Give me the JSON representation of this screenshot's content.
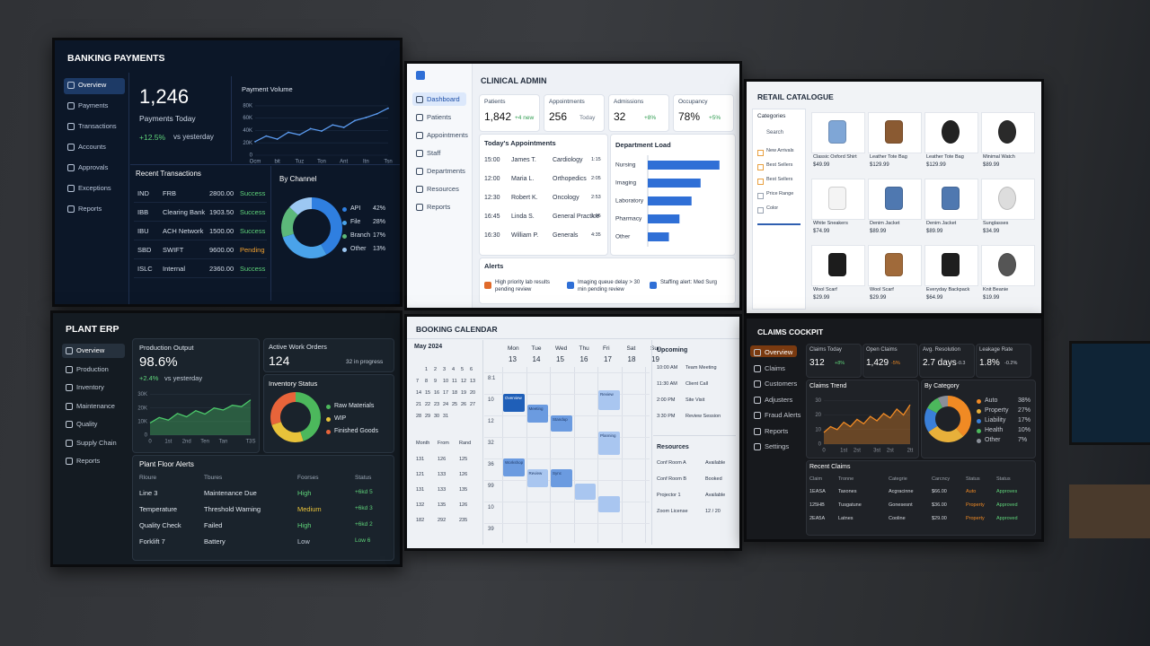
{
  "banking": {
    "title": "BANKING PAYMENTS",
    "nav": [
      "Overview",
      "Payments",
      "Transactions",
      "Accounts",
      "Approvals",
      "Exceptions",
      "Reports"
    ],
    "kpi": {
      "value": "1,246",
      "label": "Payments Today",
      "change": "+12.5%",
      "note": "vs yesterday"
    },
    "volume": {
      "type": "line",
      "title": "Payment Volume",
      "color": "#5b9bf0",
      "ylim": [
        0,
        90000
      ],
      "yticks": [
        0,
        {
          "value": 20000,
          "label": "20K"
        },
        {
          "value": 40000,
          "label": "40K"
        },
        {
          "value": 60000,
          "label": "60K"
        },
        {
          "value": 80000,
          "label": "80K"
        }
      ],
      "categories": [
        "Ocm",
        null,
        "bit",
        null,
        "Tuz",
        null,
        "Ton",
        null,
        "Ant",
        null,
        "Itn",
        null,
        "Tsn"
      ],
      "values": [
        22000,
        31000,
        26000,
        37000,
        33000,
        43000,
        39000,
        49000,
        45000,
        56000,
        61000,
        67000,
        76000
      ]
    },
    "transactions": {
      "title": "Recent Transactions",
      "rows": [
        [
          "IND",
          "FRB",
          "2800.00",
          "Success"
        ],
        [
          "IBB",
          "Clearing Bank",
          "1903.50",
          "Success"
        ],
        [
          "IBU",
          "ACH Network",
          "1500.00",
          "Success"
        ],
        [
          "SBD",
          "SWIFT",
          "9600.00",
          "Pending"
        ],
        [
          "ISLC",
          "Internal",
          "2360.00",
          "Success"
        ]
      ]
    },
    "channel": {
      "type": "pie",
      "title": "By Channel",
      "categories": [
        "API",
        "File",
        "Branch",
        "Other"
      ],
      "values": [
        42,
        28,
        17,
        13
      ],
      "value_labels": [
        "42%",
        "28%",
        "17%",
        "13%"
      ],
      "colors": [
        "#2f7fe0",
        "#4aa3ea",
        "#5cb87a",
        "#9cc7f2"
      ]
    }
  },
  "clinical": {
    "title": "CLINICAL ADMIN",
    "nav": [
      "Dashboard",
      "Patients",
      "Appointments",
      "Staff",
      "Departments",
      "Resources",
      "Reports"
    ],
    "kpis": [
      {
        "label": "Patients",
        "value": "1,842",
        "change": "+4 new"
      },
      {
        "label": "Appointments",
        "value": "256",
        "change": "Today"
      },
      {
        "label": "Admissions",
        "value": "32",
        "change": "+8%"
      },
      {
        "label": "Occupancy",
        "value": "78%",
        "change": "+5%"
      }
    ],
    "appointments": {
      "title": "Today's Appointments",
      "rows": [
        [
          "15:00",
          "James T.",
          "Cardiology",
          "1:15"
        ],
        [
          "12:00",
          "Maria L.",
          "Orthopedics",
          "2:05"
        ],
        [
          "12:30",
          "Robert K.",
          "Oncology",
          "2:53"
        ],
        [
          "16:45",
          "Linda S.",
          "General Practice",
          "1:05"
        ],
        [
          "16:30",
          "William P.",
          "Generals",
          "4:35"
        ]
      ]
    },
    "department_load": {
      "type": "bar",
      "title": "Department Load",
      "color": "#2f6fd6",
      "xlim": [
        0,
        100
      ],
      "categories": [
        "Nursing",
        "Imaging",
        "Laboratory",
        "Pharmacy",
        "Other"
      ],
      "values": [
        95,
        70,
        58,
        42,
        28
      ]
    },
    "alerts": {
      "title": "Alerts",
      "items": [
        "High priority lab results pending review",
        "Imaging queue delay > 30 min pending review",
        "Staffing alert: Med Surg"
      ]
    }
  },
  "retail": {
    "title": "RETAIL CATALOGUE",
    "sidebar": {
      "title": "Categories",
      "search": "Search",
      "filters": [
        "New Arrivals",
        "Best Sellers",
        "Best Sellers",
        "Price Range",
        "Color"
      ]
    },
    "products": [
      {
        "name": "Classic Oxford Shirt",
        "price": "$49.99"
      },
      {
        "name": "Leather Tote Bag",
        "price": "$129.99"
      },
      {
        "name": "Leather Tote Bag",
        "price": "$129.99"
      },
      {
        "name": "Minimal Watch",
        "price": "$89.99"
      },
      {
        "name": "White Sneakers",
        "price": "$74.99"
      },
      {
        "name": "Denim Jacket",
        "price": "$89.99"
      },
      {
        "name": "Denim Jacket",
        "price": "$89.99"
      },
      {
        "name": "Sunglasses",
        "price": "$34.99"
      },
      {
        "name": "Wool Scarf",
        "price": "$29.99"
      },
      {
        "name": "Wool Scarf",
        "price": "$29.99"
      },
      {
        "name": "Everyday Backpack",
        "price": "$64.99"
      },
      {
        "name": "Knit Beanie",
        "price": "$19.99"
      }
    ]
  },
  "plant": {
    "title": "PLANT ERP",
    "nav": [
      "Overview",
      "Production",
      "Inventory",
      "Maintenance",
      "Quality",
      "Supply Chain",
      "Reports"
    ],
    "output": {
      "label": "Production Output",
      "value": "98.6%",
      "change": "+2.4%",
      "note": "vs yesterday"
    },
    "output_chart": {
      "type": "line",
      "color": "#4cc96a",
      "ylim": [
        0,
        33000
      ],
      "yticks": [
        0,
        {
          "value": 10000,
          "label": "10K"
        },
        {
          "value": 20000,
          "label": "20K"
        },
        {
          "value": 30000,
          "label": "30K"
        }
      ],
      "categories": [
        "0",
        null,
        "1st",
        null,
        "2nd",
        null,
        "Ten",
        null,
        "Tan",
        null,
        null,
        "T3S"
      ],
      "values": [
        9000,
        13000,
        11000,
        16000,
        13500,
        18000,
        15500,
        20000,
        18500,
        22000,
        21000,
        26000
      ]
    },
    "work_orders": {
      "label": "Active Work Orders",
      "value": "124",
      "note": "32 in progress"
    },
    "inventory": {
      "type": "pie",
      "title": "Inventory Status",
      "categories": [
        "Raw Materials",
        "WIP",
        "Finished Goods"
      ],
      "values": [
        45,
        25,
        30
      ],
      "colors": [
        "#4cb85c",
        "#e8c23a",
        "#e8643a"
      ]
    },
    "alerts": {
      "title": "Plant Floor Alerts",
      "headers": [
        "Rloure",
        "Tbures",
        "Foorses",
        "Status"
      ],
      "rows": [
        [
          "Line 3",
          "Maintenance Due",
          "High",
          "+6kd 5"
        ],
        [
          "Temperature",
          "Threshold Warning",
          "Medium",
          "+6kd 3"
        ],
        [
          "Quality Check",
          "Failed",
          "High",
          "+6kd 2"
        ],
        [
          "Forklift 7",
          "Battery",
          "Low",
          "Low 6"
        ]
      ]
    }
  },
  "booking": {
    "title": "BOOKING CALENDAR",
    "mini_calendar": {
      "month": "May 2024",
      "days": [
        1,
        2,
        3,
        4,
        5,
        6,
        7,
        8,
        9,
        10,
        11,
        12,
        13,
        14,
        15,
        16,
        17,
        18,
        19,
        20,
        21,
        22,
        23,
        24,
        25,
        26,
        27,
        28,
        29,
        30,
        31
      ]
    },
    "mini_table": {
      "headers": [
        "Month",
        "From",
        "Rand"
      ],
      "rows": [
        [
          "131",
          "126",
          "125"
        ],
        [
          "121",
          "133",
          "126"
        ],
        [
          "131",
          "133",
          "135"
        ],
        [
          "132",
          "135",
          "126"
        ],
        [
          "182",
          "292",
          "235"
        ]
      ]
    },
    "weekdays": [
      "Mon",
      "Tue",
      "Wed",
      "Thu",
      "Fri",
      "Sat",
      "Sun"
    ],
    "dates": [
      13,
      14,
      15,
      16,
      17,
      18,
      19
    ],
    "times": [
      "8:1",
      "10",
      "12",
      "32",
      "36",
      "99",
      "10",
      "39"
    ],
    "events": [
      "Overview",
      "Meeting",
      "Standup",
      "Review",
      "Planning",
      "Workshop",
      "Review",
      "Sync"
    ],
    "upcoming": {
      "title": "Upcoming",
      "items": [
        [
          "10:00 AM",
          "Team Meeting"
        ],
        [
          "11:30 AM",
          "Client Call"
        ],
        [
          "2:00 PM",
          "Site Visit"
        ],
        [
          "3:30 PM",
          "Review Session"
        ]
      ]
    },
    "resources": {
      "title": "Resources",
      "items": [
        [
          "Conf Room A",
          "Available"
        ],
        [
          "Conf Room B",
          "Booked"
        ],
        [
          "Projector 1",
          "Available"
        ],
        [
          "Zoom License",
          "12 / 20"
        ]
      ]
    }
  },
  "claims": {
    "title": "CLAIMS COCKPIT",
    "nav": [
      "Overview",
      "Claims",
      "Customers",
      "Adjusters",
      "Fraud Alerts",
      "Reports",
      "Settings"
    ],
    "kpis": [
      {
        "label": "Claims Today",
        "value": "312",
        "change": "+8%"
      },
      {
        "label": "Open Claims",
        "value": "1,429",
        "change": "-5%"
      },
      {
        "label": "Avg. Resolution",
        "value": "2.7 days",
        "change": "-0.3"
      },
      {
        "label": "Leakage Rate",
        "value": "1.8%",
        "change": "-0.2%"
      }
    ],
    "trend": {
      "type": "line",
      "title": "Claims Trend",
      "color": "#f08a24",
      "ylim": [
        0,
        32
      ],
      "yticks": [
        0,
        10,
        20,
        30
      ],
      "categories": [
        "0",
        null,
        null,
        "1st",
        null,
        "2st",
        null,
        null,
        "3st",
        null,
        "2st",
        null,
        null,
        "2tt"
      ],
      "values": [
        8,
        12,
        10,
        15,
        12,
        17,
        14,
        19,
        16,
        21,
        18,
        24,
        20,
        27
      ]
    },
    "category": {
      "type": "pie",
      "title": "By Category",
      "categories": [
        "Auto",
        "Property",
        "Liability",
        "Health",
        "Other"
      ],
      "values": [
        38,
        27,
        17,
        10,
        7
      ],
      "value_labels": [
        "38%",
        "27%",
        "17%",
        "10%",
        "7%"
      ],
      "colors": [
        "#f08a24",
        "#e8b03a",
        "#3a7fd8",
        "#4cb85c",
        "#8a8f98"
      ]
    },
    "recent": {
      "title": "Recent Claims",
      "headers": [
        "Claim",
        "Tronne",
        "Categrie",
        "Carcncy",
        "Status",
        "Status"
      ],
      "rows": [
        [
          "1EASA",
          "Taxones",
          "Acgracinne",
          "$66.00",
          "Auto",
          "Approves"
        ],
        [
          "125HB",
          "Tusgatune",
          "Gonesesnt",
          "$36.00",
          "Property",
          "Approved"
        ],
        [
          "2EA5A",
          "Latnes",
          "Cooline",
          "$29.00",
          "Property",
          "Approved"
        ]
      ]
    }
  }
}
